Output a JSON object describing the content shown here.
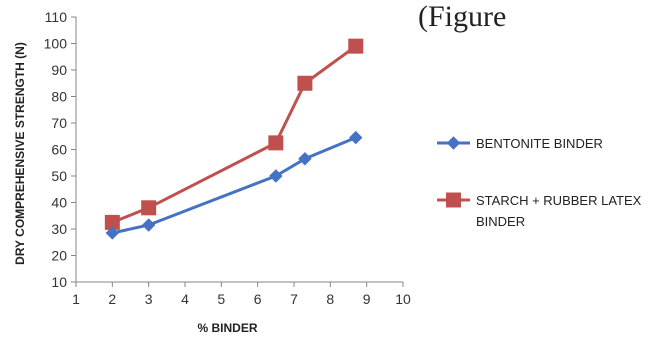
{
  "header_fragment": "(Figure",
  "chart_data": {
    "type": "line",
    "xlabel": "% BINDER",
    "ylabel": "DRY COMPREHENSIVE STRENGTH (N)",
    "xlim": [
      1,
      10
    ],
    "ylim": [
      10,
      110
    ],
    "x_ticks": [
      1,
      2,
      3,
      4,
      5,
      6,
      7,
      8,
      9,
      10
    ],
    "y_ticks": [
      10,
      20,
      30,
      40,
      50,
      60,
      70,
      80,
      90,
      100,
      110
    ],
    "grid": false,
    "legend_position": "right",
    "series": [
      {
        "name": "BENTONITE BINDER",
        "marker": "diamond",
        "color": "#4472C4",
        "x": [
          2,
          3,
          6.5,
          7.3,
          8.7
        ],
        "y": [
          28.5,
          31.5,
          50,
          56.5,
          64.5
        ]
      },
      {
        "name": "STARCH + RUBBER LATEX BINDER",
        "legend_lines": [
          "STARCH + RUBBER LATEX",
          "BINDER"
        ],
        "marker": "square",
        "color": "#C0504D",
        "x": [
          2,
          3,
          6.5,
          7.3,
          8.7
        ],
        "y": [
          32.5,
          38,
          62.5,
          85,
          99
        ]
      }
    ]
  }
}
